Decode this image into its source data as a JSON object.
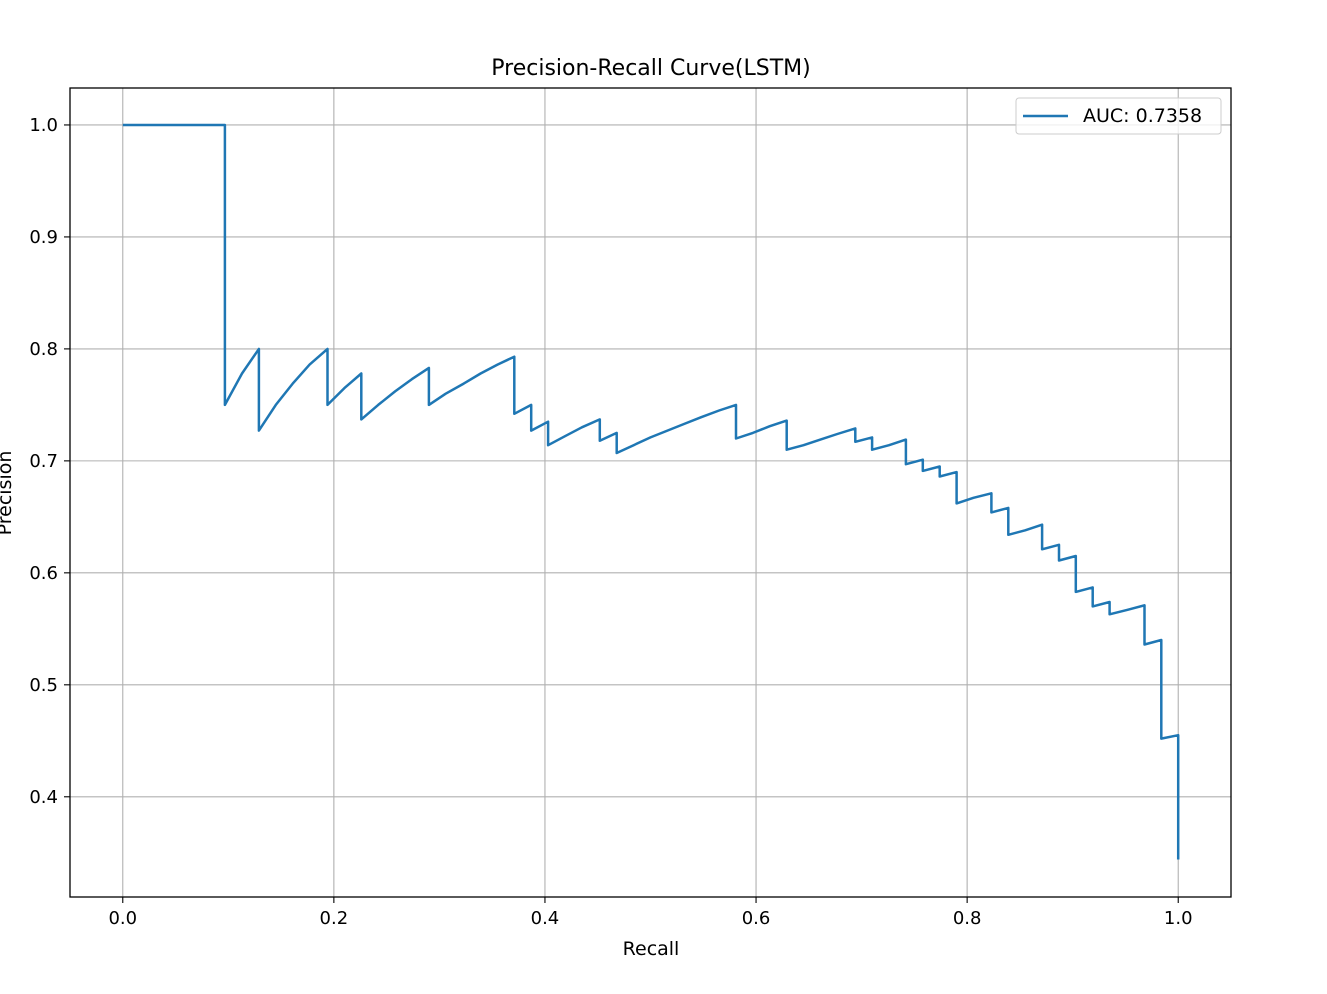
{
  "chart_data": {
    "type": "line",
    "title": "Precision-Recall Curve(LSTM)",
    "xlabel": "Recall",
    "ylabel": "Precision",
    "xlim": [
      -0.05,
      1.05
    ],
    "ylim": [
      0.3105,
      1.033
    ],
    "xticks": [
      "0.0",
      "0.2",
      "0.4",
      "0.6",
      "0.8",
      "1.0"
    ],
    "yticks": [
      "0.4",
      "0.5",
      "0.6",
      "0.7",
      "0.8",
      "0.9",
      "1.0"
    ],
    "grid": true,
    "legend_position": "top-right",
    "color": "#1f77b4",
    "series": [
      {
        "name": "AUC: 0.7358",
        "x": [
          0.0,
          0.0968,
          0.0968,
          0.113,
          0.129,
          0.129,
          0.145,
          0.161,
          0.177,
          0.194,
          0.194,
          0.21,
          0.226,
          0.226,
          0.242,
          0.258,
          0.274,
          0.29,
          0.29,
          0.306,
          0.323,
          0.339,
          0.355,
          0.371,
          0.371,
          0.387,
          0.387,
          0.403,
          0.403,
          0.419,
          0.435,
          0.452,
          0.452,
          0.468,
          0.468,
          0.484,
          0.5,
          0.516,
          0.532,
          0.548,
          0.565,
          0.581,
          0.581,
          0.597,
          0.613,
          0.629,
          0.629,
          0.645,
          0.661,
          0.677,
          0.694,
          0.694,
          0.71,
          0.71,
          0.726,
          0.742,
          0.742,
          0.758,
          0.758,
          0.774,
          0.774,
          0.79,
          0.79,
          0.806,
          0.823,
          0.823,
          0.839,
          0.839,
          0.855,
          0.871,
          0.871,
          0.887,
          0.887,
          0.903,
          0.903,
          0.919,
          0.919,
          0.935,
          0.935,
          0.952,
          0.968,
          0.968,
          0.984,
          0.984,
          1.0,
          1.0
        ],
        "y": [
          1.0,
          1.0,
          0.75,
          0.778,
          0.8,
          0.727,
          0.75,
          0.769,
          0.786,
          0.8,
          0.75,
          0.765,
          0.778,
          0.737,
          0.75,
          0.762,
          0.773,
          0.783,
          0.75,
          0.76,
          0.769,
          0.778,
          0.786,
          0.793,
          0.742,
          0.75,
          0.727,
          0.735,
          0.714,
          0.722,
          0.73,
          0.737,
          0.718,
          0.725,
          0.707,
          0.714,
          0.721,
          0.727,
          0.733,
          0.739,
          0.745,
          0.75,
          0.72,
          0.725,
          0.731,
          0.736,
          0.71,
          0.714,
          0.719,
          0.724,
          0.729,
          0.717,
          0.721,
          0.71,
          0.714,
          0.719,
          0.697,
          0.701,
          0.691,
          0.695,
          0.686,
          0.69,
          0.662,
          0.667,
          0.671,
          0.654,
          0.658,
          0.634,
          0.638,
          0.643,
          0.621,
          0.625,
          0.611,
          0.615,
          0.583,
          0.587,
          0.57,
          0.574,
          0.563,
          0.567,
          0.571,
          0.536,
          0.54,
          0.452,
          0.455,
          0.344
        ]
      }
    ]
  }
}
